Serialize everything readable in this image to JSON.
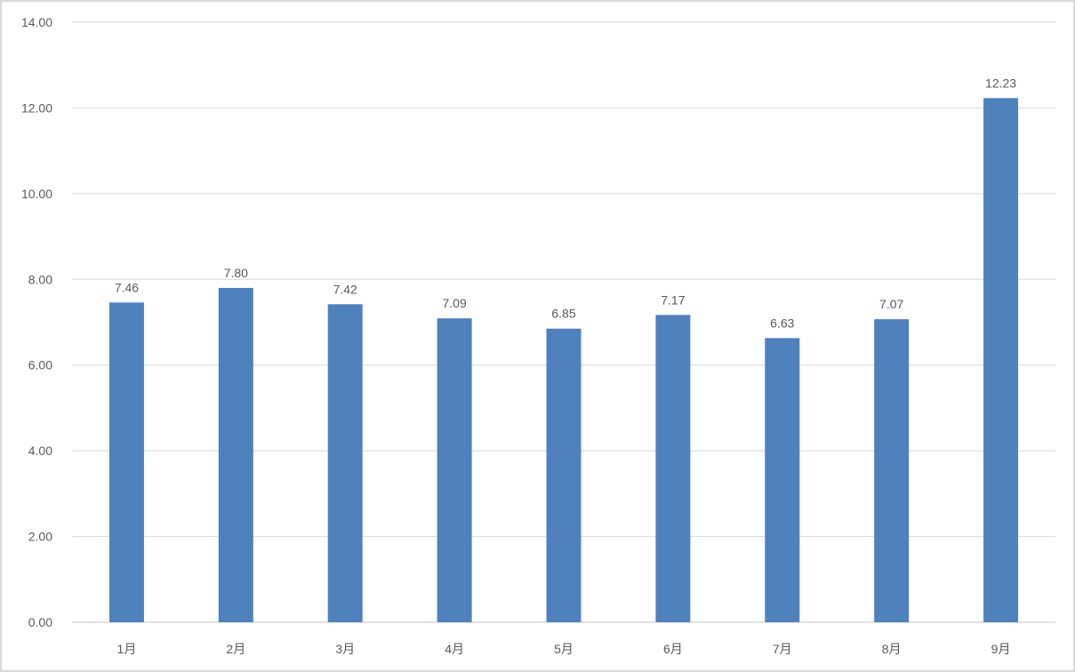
{
  "chart_data": {
    "type": "bar",
    "title": "",
    "xlabel": "",
    "ylabel": "",
    "categories": [
      "1月",
      "2月",
      "3月",
      "4月",
      "5月",
      "6月",
      "7月",
      "8月",
      "9月"
    ],
    "values": [
      7.46,
      7.8,
      7.42,
      7.09,
      6.85,
      7.17,
      6.63,
      7.07,
      12.23
    ],
    "value_labels": [
      "7.46",
      "7.80",
      "7.42",
      "7.09",
      "6.85",
      "7.17",
      "6.63",
      "7.07",
      "12.23"
    ],
    "ylim": [
      0,
      14
    ],
    "yticks": [
      "0.00",
      "2.00",
      "4.00",
      "6.00",
      "8.00",
      "10.00",
      "12.00",
      "14.00"
    ],
    "grid": true,
    "legend": "none",
    "bar_color": "#4f81bd",
    "text_color": "#595959",
    "grid_color": "#d9d9d9"
  }
}
